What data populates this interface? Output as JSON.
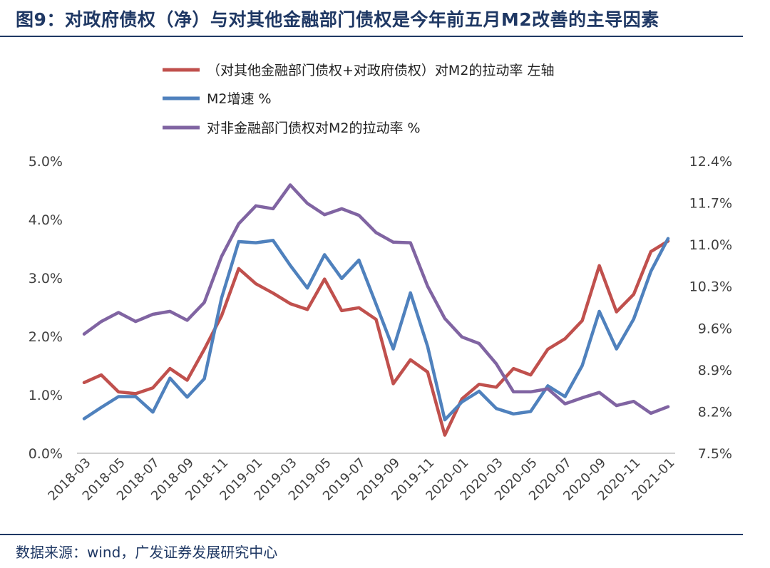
{
  "title": "图9：对政府债权（净）与对其他金融部门债权是今年前五月M2改善的主导因素",
  "source": "数据来源：wind，广发证券发展研究中心",
  "chart_data": {
    "type": "line",
    "x": [
      "2018-03",
      "2018-04",
      "2018-05",
      "2018-06",
      "2018-07",
      "2018-08",
      "2018-09",
      "2018-10",
      "2018-11",
      "2018-12",
      "2019-01",
      "2019-02",
      "2019-03",
      "2019-04",
      "2019-05",
      "2019-06",
      "2019-07",
      "2019-08",
      "2019-09",
      "2019-10",
      "2019-11",
      "2019-12",
      "2020-01",
      "2020-02",
      "2020-03",
      "2020-04",
      "2020-05",
      "2020-06",
      "2020-07",
      "2020-08",
      "2020-09",
      "2020-10",
      "2020-11",
      "2020-12",
      "2021-01"
    ],
    "xticks": [
      "2018-03",
      "2018-05",
      "2018-07",
      "2018-09",
      "2018-11",
      "2019-01",
      "2019-03",
      "2019-05",
      "2019-07",
      "2019-09",
      "2019-11",
      "2020-01",
      "2020-03",
      "2020-05",
      "2020-07",
      "2020-09",
      "2020-11",
      "2021-01"
    ],
    "left_axis": {
      "ylim": [
        0,
        5
      ],
      "ticks": [
        "0.0%",
        "1.0%",
        "2.0%",
        "3.0%",
        "4.0%",
        "5.0%"
      ]
    },
    "right_axis": {
      "ylim": [
        7.5,
        12.4
      ],
      "ticks": [
        "7.5%",
        "8.2%",
        "8.9%",
        "9.6%",
        "10.3%",
        "11.0%",
        "11.7%",
        "12.4%"
      ]
    },
    "series": [
      {
        "name": "（对其他金融部门债权+对政府债权）对M2的拉动率  左轴",
        "color": "#c0504d",
        "axis": "left",
        "values": [
          1.21,
          1.34,
          1.05,
          1.02,
          1.12,
          1.45,
          1.25,
          1.78,
          2.35,
          3.16,
          2.9,
          2.74,
          2.56,
          2.46,
          2.98,
          2.44,
          2.49,
          2.29,
          1.19,
          1.6,
          1.39,
          0.31,
          0.93,
          1.18,
          1.13,
          1.45,
          1.34,
          1.78,
          1.96,
          2.27,
          3.21,
          2.42,
          2.72,
          3.45,
          3.63
        ]
      },
      {
        "name": "M2增速  %",
        "color": "#4f81bd",
        "axis": "right",
        "values": [
          8.08,
          8.27,
          8.45,
          8.45,
          8.19,
          8.76,
          8.44,
          8.75,
          10.1,
          11.05,
          11.03,
          11.07,
          10.65,
          10.27,
          10.83,
          10.43,
          10.74,
          10.0,
          9.25,
          10.19,
          9.29,
          8.06,
          8.36,
          8.54,
          8.25,
          8.16,
          8.2,
          8.63,
          8.45,
          8.97,
          9.88,
          9.25,
          9.75,
          10.55,
          11.1
        ]
      },
      {
        "name": "对非金融部门债权对M2的拉动率  %",
        "color": "#8064a2",
        "axis": "right",
        "values": [
          9.5,
          9.71,
          9.86,
          9.71,
          9.83,
          9.88,
          9.73,
          10.03,
          10.8,
          11.35,
          11.65,
          11.6,
          12.0,
          11.69,
          11.5,
          11.6,
          11.49,
          11.2,
          11.04,
          11.03,
          10.3,
          9.76,
          9.45,
          9.34,
          9.0,
          8.53,
          8.53,
          8.58,
          8.33,
          8.43,
          8.52,
          8.3,
          8.37,
          8.17,
          8.28
        ]
      }
    ]
  }
}
